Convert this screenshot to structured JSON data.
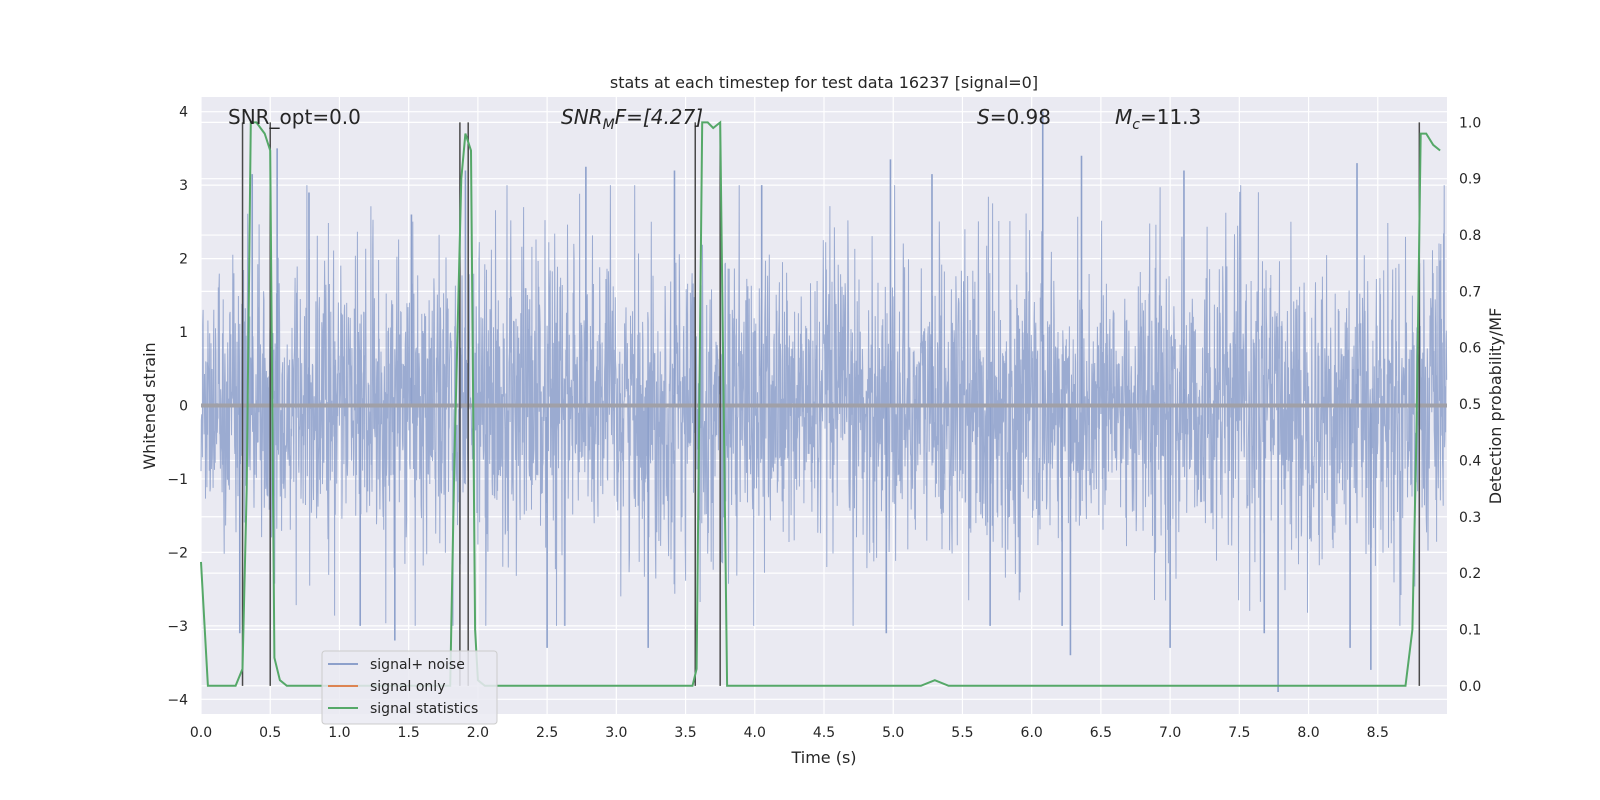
{
  "chart_data": {
    "type": "line",
    "title": "stats at each timestep for test data 16237 [signal=0]",
    "xlabel": "Time (s)",
    "ylabel": "Whitened strain",
    "ylabel_right": "Detection probability/MF",
    "xlim": [
      0.0,
      9.0
    ],
    "ylim": [
      -4.2,
      4.2
    ],
    "ylim_right": [
      -0.05,
      1.045
    ],
    "xticks": [
      "0.0",
      "0.5",
      "1.0",
      "1.5",
      "2.0",
      "2.5",
      "3.0",
      "3.5",
      "4.0",
      "4.5",
      "5.0",
      "5.5",
      "6.0",
      "6.5",
      "7.0",
      "7.5",
      "8.0",
      "8.5"
    ],
    "yticks": [
      "4",
      "3",
      "2",
      "1",
      "0",
      "-1",
      "-2",
      "-3",
      "-4"
    ],
    "yticks_right": [
      "1.0",
      "0.9",
      "0.8",
      "0.7",
      "0.6",
      "0.5",
      "0.4",
      "0.3",
      "0.2",
      "0.1",
      "0.0"
    ],
    "grid": true,
    "legend_position": "lower-left",
    "annotations": {
      "snr_opt": "SNR_opt=0.0",
      "snr_mf_main": "SNR",
      "snr_mf_sub": "M",
      "snr_mf_rest": "F=[4.27]",
      "s_var": "S",
      "s_rest": "=0.98",
      "mc_var": "M",
      "mc_sub": "c",
      "mc_rest": "=11.3"
    },
    "series": [
      {
        "name": "signal+ noise",
        "color": "#8da0cb",
        "kind": "noise",
        "peak_times": [
          0.37,
          0.55,
          0.78,
          1.52,
          1.91,
          2.78,
          3.42,
          4.05,
          4.98,
          5.28,
          6.08,
          6.36,
          7.1,
          7.78,
          8.35
        ],
        "peak_values": [
          3.15,
          3.5,
          2.9,
          2.6,
          3.2,
          3.25,
          3.2,
          3.0,
          3.35,
          3.15,
          4.0,
          3.4,
          3.2,
          -3.9,
          3.3
        ],
        "trough_times": [
          0.28,
          1.15,
          1.4,
          2.5,
          3.23,
          4.95,
          5.7,
          6.22,
          6.28,
          7.0,
          7.68,
          8.3,
          8.45
        ],
        "trough_values": [
          -3.1,
          -3.0,
          -3.2,
          -3.3,
          -3.3,
          -3.1,
          -3.0,
          -3.0,
          -3.4,
          -3.3,
          -3.1,
          -3.3,
          -3.6
        ]
      },
      {
        "name": "signal only",
        "color": "#dd8452",
        "kind": "line",
        "x": [
          0.0,
          9.0
        ],
        "y": [
          0.0,
          0.0
        ]
      },
      {
        "name": "signal statistics",
        "color": "#55a868",
        "kind": "line",
        "axis": "right",
        "x": [
          0.0,
          0.05,
          0.25,
          0.3,
          0.33,
          0.36,
          0.4,
          0.43,
          0.46,
          0.5,
          0.53,
          0.57,
          0.62,
          0.8,
          1.0,
          1.8,
          1.83,
          1.88,
          1.91,
          1.95,
          1.98,
          2.0,
          2.05,
          2.2,
          3.0,
          3.55,
          3.58,
          3.62,
          3.66,
          3.7,
          3.75,
          3.8,
          3.85,
          4.0,
          5.0,
          5.2,
          5.3,
          5.4,
          6.0,
          7.0,
          8.0,
          8.7,
          8.75,
          8.78,
          8.81,
          8.85,
          8.9,
          8.95
        ],
        "y": [
          0.22,
          0.0,
          0.0,
          0.03,
          0.35,
          1.0,
          1.0,
          0.99,
          0.98,
          0.95,
          0.05,
          0.01,
          0.0,
          0.0,
          0.0,
          0.0,
          0.4,
          0.9,
          0.98,
          0.95,
          0.1,
          0.01,
          0.0,
          0.0,
          0.0,
          0.0,
          0.03,
          1.0,
          1.0,
          0.99,
          1.0,
          0.0,
          0.0,
          0.0,
          0.0,
          0.0,
          0.01,
          0.0,
          0.0,
          0.0,
          0.0,
          0.0,
          0.1,
          0.45,
          0.98,
          0.98,
          0.96,
          0.95
        ]
      }
    ],
    "vlines_right_axis": {
      "color": "#4a4a4a",
      "x": [
        0.3,
        0.5,
        1.87,
        1.93,
        3.57,
        3.75,
        8.8
      ],
      "y_from": 0.0,
      "y_to": 1.0
    }
  }
}
